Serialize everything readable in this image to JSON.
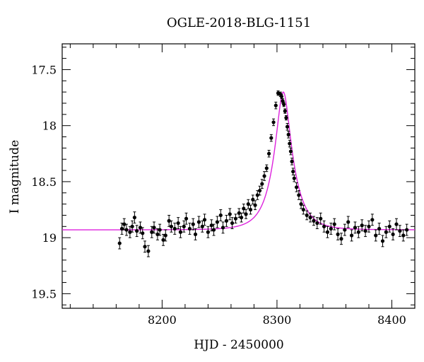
{
  "chart_data": {
    "type": "scatter",
    "title": "OGLE-2018-BLG-1151",
    "xlabel": "HJD - 2450000",
    "ylabel": "I magnitude",
    "xlim": [
      8113,
      8420
    ],
    "ylim": [
      17.27,
      19.63
    ],
    "y_inverted": true,
    "grid": false,
    "x_ticks": [
      8200,
      8300,
      8400
    ],
    "y_ticks": [
      17.5,
      18,
      18.5,
      19,
      19.5
    ],
    "x_tick_labels": [
      "8200",
      "8300",
      "8400"
    ],
    "y_tick_labels": [
      "17.5",
      "18",
      "18.5",
      "19",
      "19.5"
    ],
    "model": {
      "color": "#dd22dd",
      "baseline": 18.93,
      "peak_mag": 17.7,
      "t0": 8305.5
    },
    "points_color": "#000000",
    "series": [
      {
        "x": [
          8163,
          8165,
          8167,
          8169,
          8172,
          8174,
          8176,
          8178,
          8181,
          8183,
          8185,
          8188,
          8191,
          8193,
          8196,
          8198,
          8201,
          8203,
          8206,
          8208,
          8211,
          8214,
          8216,
          8219,
          8221,
          8224,
          8227,
          8229,
          8232,
          8235,
          8237,
          8240,
          8243,
          8245,
          8248,
          8251,
          8253,
          8256,
          8259,
          8261,
          8264,
          8267,
          8269,
          8271,
          8273,
          8275,
          8277,
          8279,
          8281,
          8283,
          8285,
          8287,
          8289,
          8291,
          8293,
          8295,
          8297,
          8299,
          8301,
          8303,
          8304,
          8305,
          8306,
          8307,
          8308,
          8309,
          8310,
          8311,
          8312,
          8313,
          8314,
          8315,
          8317,
          8319,
          8321,
          8323,
          8326,
          8329,
          8332,
          8335,
          8338,
          8341,
          8344,
          8347,
          8350,
          8353,
          8356,
          8359,
          8362,
          8365,
          8368,
          8371,
          8374,
          8377,
          8380,
          8383,
          8386,
          8389,
          8392,
          8395,
          8398,
          8401,
          8404,
          8407,
          8410,
          8413
        ],
        "y": [
          19.05,
          18.92,
          18.88,
          18.93,
          18.95,
          18.9,
          18.82,
          18.94,
          18.91,
          18.96,
          19.08,
          19.12,
          18.95,
          18.91,
          18.97,
          18.93,
          19.02,
          18.98,
          18.85,
          18.9,
          18.92,
          18.87,
          18.95,
          18.9,
          18.83,
          18.92,
          18.88,
          18.97,
          18.86,
          18.9,
          18.84,
          18.95,
          18.89,
          18.93,
          18.86,
          18.8,
          18.91,
          18.85,
          18.79,
          18.87,
          18.83,
          18.78,
          18.82,
          18.74,
          18.79,
          18.7,
          18.75,
          18.66,
          18.71,
          18.62,
          18.58,
          18.52,
          18.45,
          18.38,
          18.25,
          18.11,
          17.97,
          17.82,
          17.71,
          17.72,
          17.74,
          17.78,
          17.81,
          17.87,
          17.93,
          18.01,
          18.08,
          18.16,
          18.23,
          18.32,
          18.41,
          18.47,
          18.55,
          18.62,
          18.7,
          18.75,
          18.8,
          18.82,
          18.85,
          18.87,
          18.83,
          18.9,
          18.95,
          18.92,
          18.88,
          18.97,
          19.01,
          18.93,
          18.86,
          18.98,
          18.91,
          18.95,
          18.89,
          18.94,
          18.9,
          18.84,
          18.98,
          18.92,
          19.03,
          18.95,
          18.9,
          18.97,
          18.88,
          18.94,
          18.98,
          18.93
        ],
        "err": [
          0.05,
          0.05,
          0.05,
          0.05,
          0.05,
          0.05,
          0.05,
          0.05,
          0.05,
          0.05,
          0.05,
          0.05,
          0.05,
          0.05,
          0.05,
          0.05,
          0.05,
          0.05,
          0.05,
          0.05,
          0.05,
          0.05,
          0.05,
          0.05,
          0.05,
          0.05,
          0.05,
          0.05,
          0.05,
          0.05,
          0.05,
          0.05,
          0.05,
          0.05,
          0.05,
          0.05,
          0.05,
          0.05,
          0.05,
          0.05,
          0.04,
          0.04,
          0.04,
          0.04,
          0.04,
          0.04,
          0.04,
          0.04,
          0.04,
          0.04,
          0.04,
          0.04,
          0.04,
          0.03,
          0.03,
          0.03,
          0.03,
          0.03,
          0.02,
          0.02,
          0.02,
          0.02,
          0.02,
          0.02,
          0.02,
          0.03,
          0.03,
          0.03,
          0.03,
          0.03,
          0.03,
          0.03,
          0.04,
          0.04,
          0.04,
          0.04,
          0.04,
          0.04,
          0.04,
          0.05,
          0.05,
          0.05,
          0.05,
          0.05,
          0.05,
          0.05,
          0.05,
          0.05,
          0.05,
          0.05,
          0.05,
          0.05,
          0.05,
          0.05,
          0.05,
          0.05,
          0.05,
          0.05,
          0.05,
          0.05,
          0.05,
          0.05,
          0.05,
          0.05,
          0.05,
          0.05
        ]
      }
    ]
  }
}
